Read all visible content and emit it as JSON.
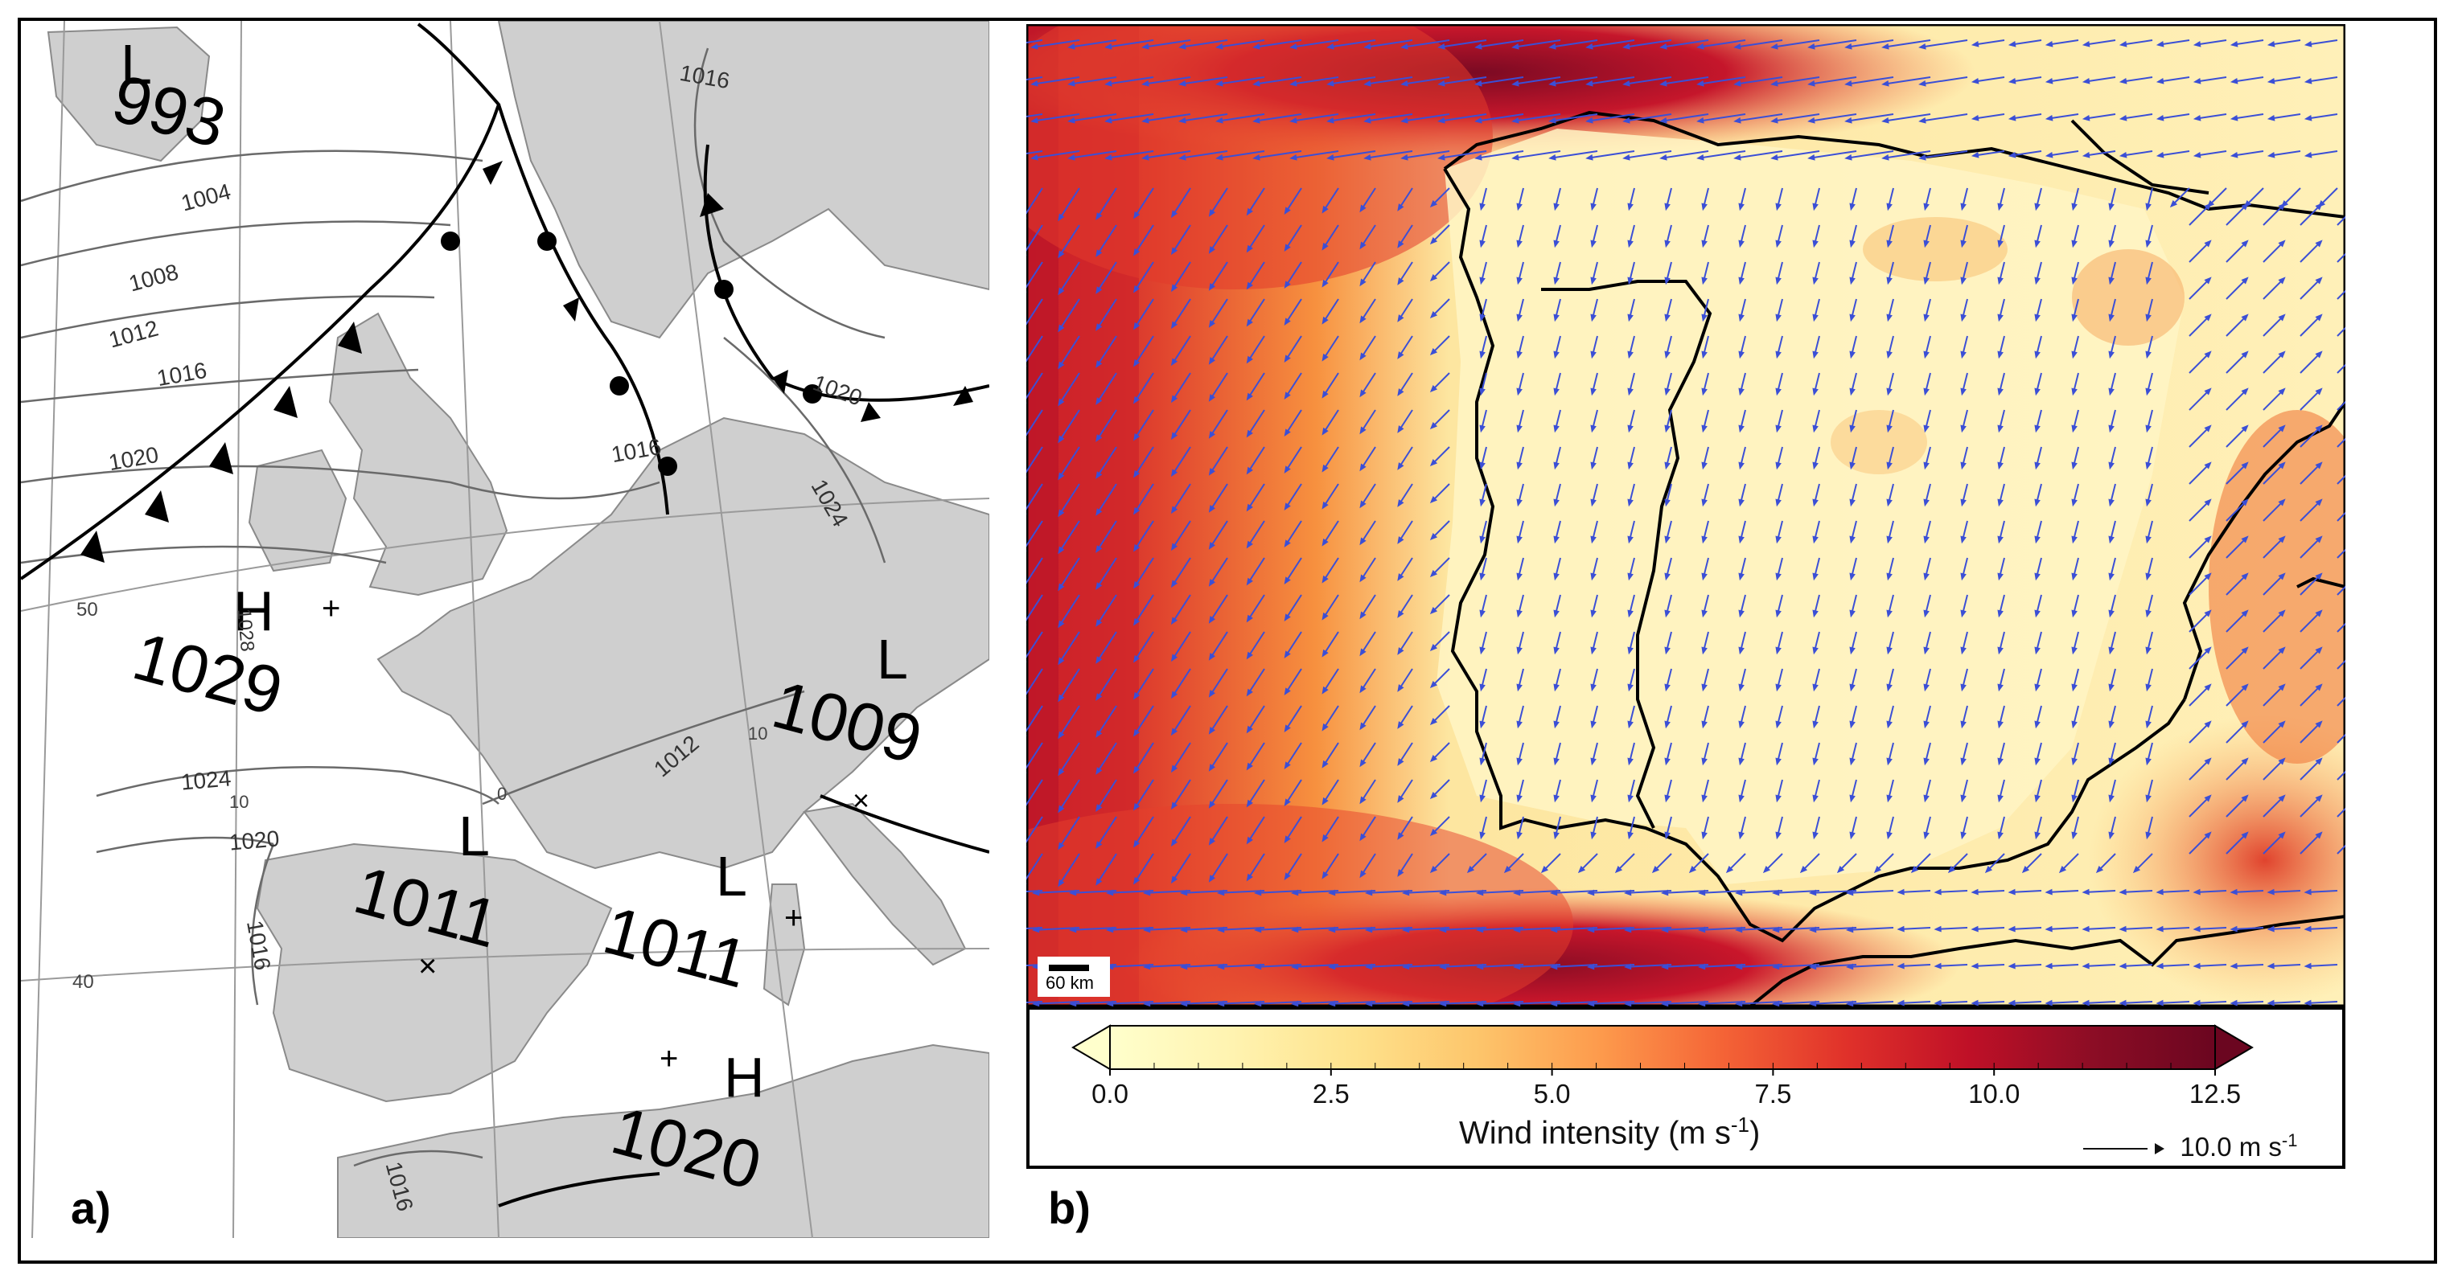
{
  "panel_a": {
    "label": "a)",
    "pressure_systems": [
      {
        "kind": "L",
        "value": "993"
      },
      {
        "kind": "H",
        "value": "1029"
      },
      {
        "kind": "L",
        "value": "1009"
      },
      {
        "kind": "L",
        "value": "1011"
      },
      {
        "kind": "L",
        "value": "1011"
      },
      {
        "kind": "H",
        "value": "1020"
      }
    ],
    "isobar_labels": [
      "1004",
      "1008",
      "1012",
      "1016",
      "1020",
      "1024",
      "1020",
      "1016",
      "1012",
      "1016",
      "1024",
      "1020",
      "1016",
      "1016",
      "1028"
    ],
    "graticule_labels": [
      "50",
      "40",
      "10",
      "0",
      "10"
    ]
  },
  "panel_b": {
    "label": "b)",
    "colorbar": {
      "title": "Wind intensity (m s",
      "title_sup": "-1",
      "title_end": ")",
      "ticks": [
        "0.0",
        "2.5",
        "5.0",
        "7.5",
        "10.0",
        "12.5"
      ],
      "min": 0.0,
      "max": 12.5,
      "colors": [
        "#ffffcc",
        "#fff3b0",
        "#fee28c",
        "#fdc56b",
        "#fd9a4c",
        "#f46336",
        "#e0312a",
        "#bf1027",
        "#8c0d25",
        "#6b0620"
      ]
    },
    "reference_vector": {
      "value": "10.0 m s",
      "sup": "-1"
    },
    "scale_bar": "60 km",
    "vector_color": "#3b4fd6"
  }
}
